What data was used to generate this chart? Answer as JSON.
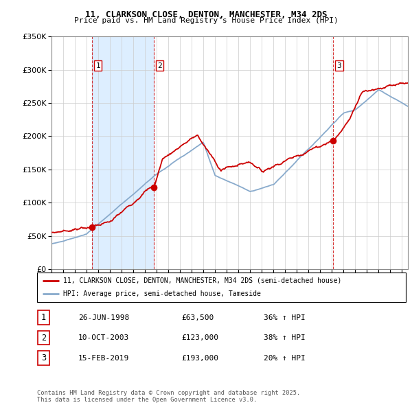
{
  "title": "11, CLARKSON CLOSE, DENTON, MANCHESTER, M34 2DS",
  "subtitle": "Price paid vs. HM Land Registry's House Price Index (HPI)",
  "legend_line1": "11, CLARKSON CLOSE, DENTON, MANCHESTER, M34 2DS (semi-detached house)",
  "legend_line2": "HPI: Average price, semi-detached house, Tameside",
  "footer": "Contains HM Land Registry data © Crown copyright and database right 2025.\nThis data is licensed under the Open Government Licence v3.0.",
  "transactions": [
    {
      "num": 1,
      "date": "26-JUN-1998",
      "price": "£63,500",
      "change": "36% ↑ HPI",
      "year": 1998.49,
      "value": 63500
    },
    {
      "num": 2,
      "date": "10-OCT-2003",
      "price": "£123,000",
      "change": "38% ↑ HPI",
      "year": 2003.78,
      "value": 123000
    },
    {
      "num": 3,
      "date": "15-FEB-2019",
      "price": "£193,000",
      "change": "20% ↑ HPI",
      "year": 2019.12,
      "value": 193000
    }
  ],
  "red_line_color": "#cc0000",
  "blue_line_color": "#88aacc",
  "shade_color": "#ddeeff",
  "vline_color": "#cc0000",
  "grid_color": "#cccccc",
  "bg_color": "#ffffff",
  "ylim": [
    0,
    350000
  ],
  "xlim_start": 1995.0,
  "xlim_end": 2025.5,
  "yticks": [
    0,
    50000,
    100000,
    150000,
    200000,
    250000,
    300000,
    350000
  ],
  "xticks": [
    1995,
    1996,
    1997,
    1998,
    1999,
    2000,
    2001,
    2002,
    2003,
    2004,
    2005,
    2006,
    2007,
    2008,
    2009,
    2010,
    2011,
    2012,
    2013,
    2014,
    2015,
    2016,
    2017,
    2018,
    2019,
    2020,
    2021,
    2022,
    2023,
    2024,
    2025
  ]
}
